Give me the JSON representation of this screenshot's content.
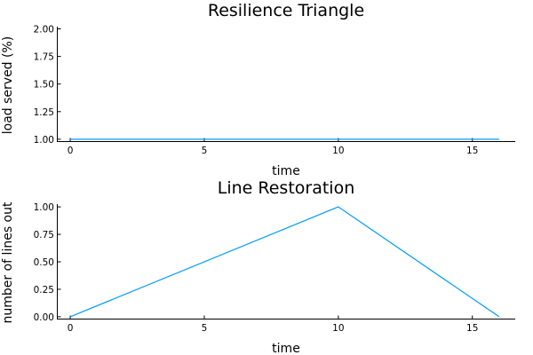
{
  "chart_data": [
    {
      "type": "line",
      "title": "Resilience Triangle",
      "xlabel": "time",
      "ylabel": "load served (%)",
      "xlim": [
        -0.5,
        16.6
      ],
      "ylim": [
        0.975,
        2.02
      ],
      "xticks": [
        0,
        5,
        10,
        15
      ],
      "xtick_labels": [
        "0",
        "5",
        "10",
        "15"
      ],
      "yticks": [
        1.0,
        1.25,
        1.5,
        1.75,
        2.0
      ],
      "ytick_labels": [
        "1.00",
        "1.25",
        "1.50",
        "1.75",
        "2.00"
      ],
      "grid": false,
      "legend": "none",
      "series": [
        {
          "color": "#009AFA",
          "x": [
            0,
            16
          ],
          "y": [
            1.0,
            1.0
          ]
        }
      ]
    },
    {
      "type": "line",
      "title": "Line Restoration",
      "xlabel": "time",
      "ylabel": "number of lines out",
      "xlim": [
        -0.5,
        16.6
      ],
      "ylim": [
        -0.025,
        1.025
      ],
      "xticks": [
        0,
        5,
        10,
        15
      ],
      "xtick_labels": [
        "0",
        "5",
        "10",
        "15"
      ],
      "yticks": [
        0.0,
        0.25,
        0.5,
        0.75,
        1.0
      ],
      "ytick_labels": [
        "0.00",
        "0.25",
        "0.50",
        "0.75",
        "1.00"
      ],
      "grid": false,
      "legend": "none",
      "series": [
        {
          "color": "#009AFA",
          "x": [
            0,
            10,
            16
          ],
          "y": [
            0.0,
            1.0,
            0.0
          ]
        }
      ]
    }
  ]
}
